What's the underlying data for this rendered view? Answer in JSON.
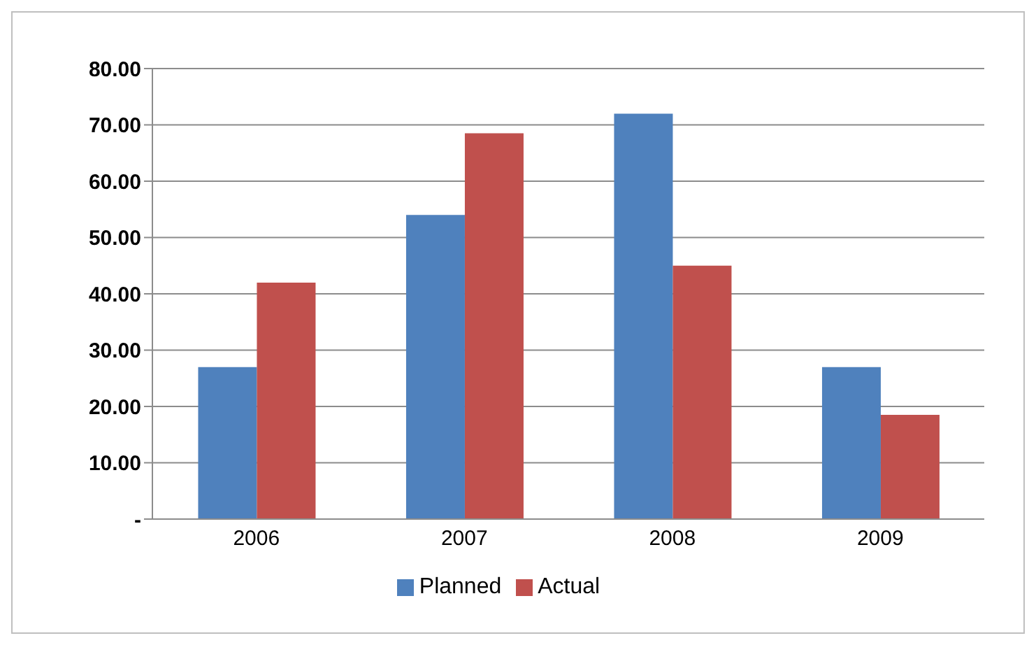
{
  "chart_data": {
    "type": "bar",
    "categories": [
      "2006",
      "2007",
      "2008",
      "2009"
    ],
    "series": [
      {
        "name": "Planned",
        "color": "#4f81bd",
        "values": [
          27,
          54,
          72,
          27
        ]
      },
      {
        "name": "Actual",
        "color": "#c0504d",
        "values": [
          42,
          68.5,
          45,
          18.5
        ]
      }
    ],
    "ylim": [
      0,
      80
    ],
    "yticks": [
      {
        "value": 0,
        "label": "-"
      },
      {
        "value": 10,
        "label": "10.00"
      },
      {
        "value": 20,
        "label": "20.00"
      },
      {
        "value": 30,
        "label": "30.00"
      },
      {
        "value": 40,
        "label": "40.00"
      },
      {
        "value": 50,
        "label": "50.00"
      },
      {
        "value": 60,
        "label": "60.00"
      },
      {
        "value": 70,
        "label": "70.00"
      },
      {
        "value": 80,
        "label": "80.00"
      }
    ],
    "grid": "y",
    "legend": "bottom"
  }
}
